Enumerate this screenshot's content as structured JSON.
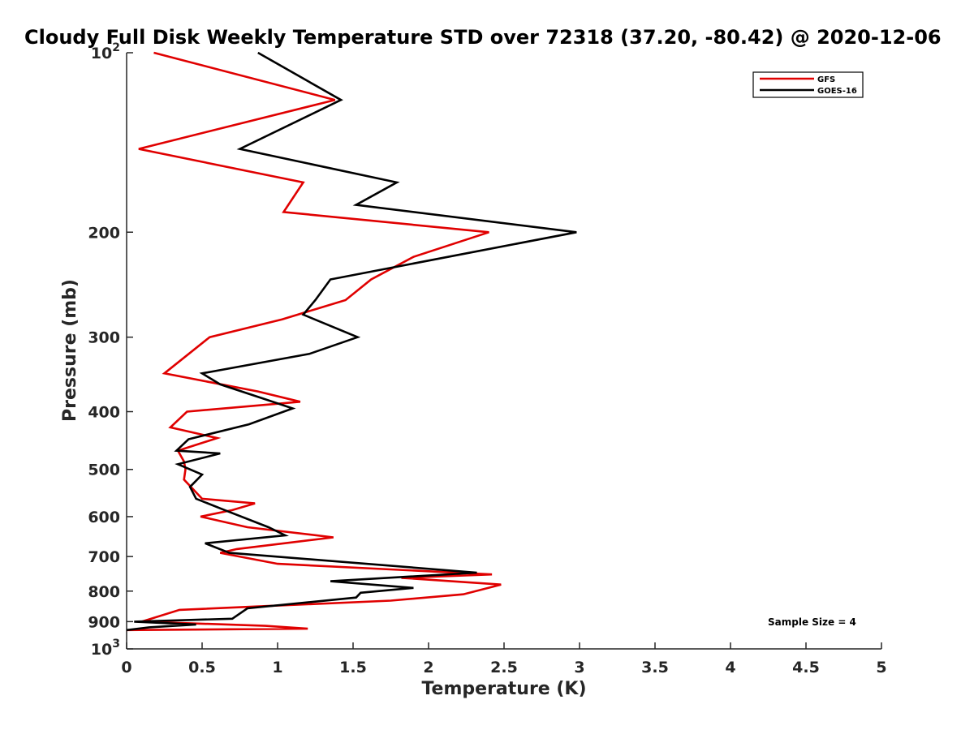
{
  "chart_data": {
    "type": "line",
    "title": "Cloudy Full Disk Weekly Temperature STD over 72318 (37.20, -80.42) @ 2020-12-06",
    "xlabel": "Temperature (K)",
    "ylabel": "Pressure (mb)",
    "xlim": [
      0,
      5
    ],
    "ylim": [
      100,
      1000
    ],
    "yscale": "log",
    "y_reversed": true,
    "xticks": [
      "0",
      "0.5",
      "1",
      "1.5",
      "2",
      "2.5",
      "3",
      "3.5",
      "4",
      "4.5",
      "5"
    ],
    "xtick_values": [
      0,
      0.5,
      1,
      1.5,
      2,
      2.5,
      3,
      3.5,
      4,
      4.5,
      5
    ],
    "yticks": [
      {
        "value": 100,
        "base": "10",
        "exp": "2"
      },
      {
        "value": 200,
        "label": "200"
      },
      {
        "value": 300,
        "label": "300"
      },
      {
        "value": 400,
        "label": "400"
      },
      {
        "value": 500,
        "label": "500"
      },
      {
        "value": 600,
        "label": "600"
      },
      {
        "value": 700,
        "label": "700"
      },
      {
        "value": 800,
        "label": "800"
      },
      {
        "value": 900,
        "label": "900"
      },
      {
        "value": 1000,
        "base": "10",
        "exp": "3"
      }
    ],
    "legend_position": "top-right",
    "annotation": "Sample Size = 4",
    "series": [
      {
        "name": "GFS",
        "color": "#e00000",
        "x": [
          0.18,
          1.38,
          0.08,
          1.17,
          1.04,
          2.4,
          1.9,
          1.62,
          1.45,
          1.03,
          0.55,
          0.25,
          0.87,
          1.15,
          0.4,
          0.29,
          0.6,
          0.34,
          0.38,
          0.39,
          0.38,
          0.5,
          0.85,
          0.7,
          0.49,
          0.8,
          1.37,
          0.73,
          0.62,
          1.0,
          2.42,
          1.82,
          2.48,
          2.23,
          1.75,
          0.35,
          0.1,
          0.92,
          1.2,
          0.0
        ],
        "y": [
          100,
          120,
          145,
          165,
          185,
          200,
          220,
          240,
          260,
          280,
          300,
          345,
          370,
          385,
          400,
          425,
          443,
          465,
          485,
          500,
          520,
          560,
          570,
          585,
          600,
          625,
          650,
          680,
          690,
          720,
          750,
          760,
          780,
          810,
          830,
          860,
          900,
          915,
          925,
          930
        ]
      },
      {
        "name": "GOES-16",
        "color": "#000000",
        "x": [
          0.87,
          1.42,
          0.75,
          1.79,
          1.52,
          2.98,
          1.35,
          1.25,
          1.17,
          1.53,
          1.21,
          0.5,
          0.62,
          0.9,
          1.1,
          0.81,
          0.41,
          0.33,
          0.62,
          0.34,
          0.5,
          0.42,
          0.46,
          0.65,
          0.94,
          1.05,
          0.52,
          0.68,
          2.32,
          1.35,
          1.9,
          1.55,
          1.52,
          0.8,
          0.7,
          0.05,
          0.46,
          0.15,
          0.0
        ],
        "y": [
          100,
          120,
          145,
          165,
          180,
          200,
          240,
          260,
          275,
          300,
          320,
          345,
          360,
          380,
          395,
          420,
          445,
          465,
          470,
          490,
          510,
          535,
          560,
          585,
          625,
          645,
          665,
          690,
          745,
          770,
          790,
          805,
          820,
          855,
          890,
          900,
          910,
          920,
          930
        ]
      }
    ]
  }
}
